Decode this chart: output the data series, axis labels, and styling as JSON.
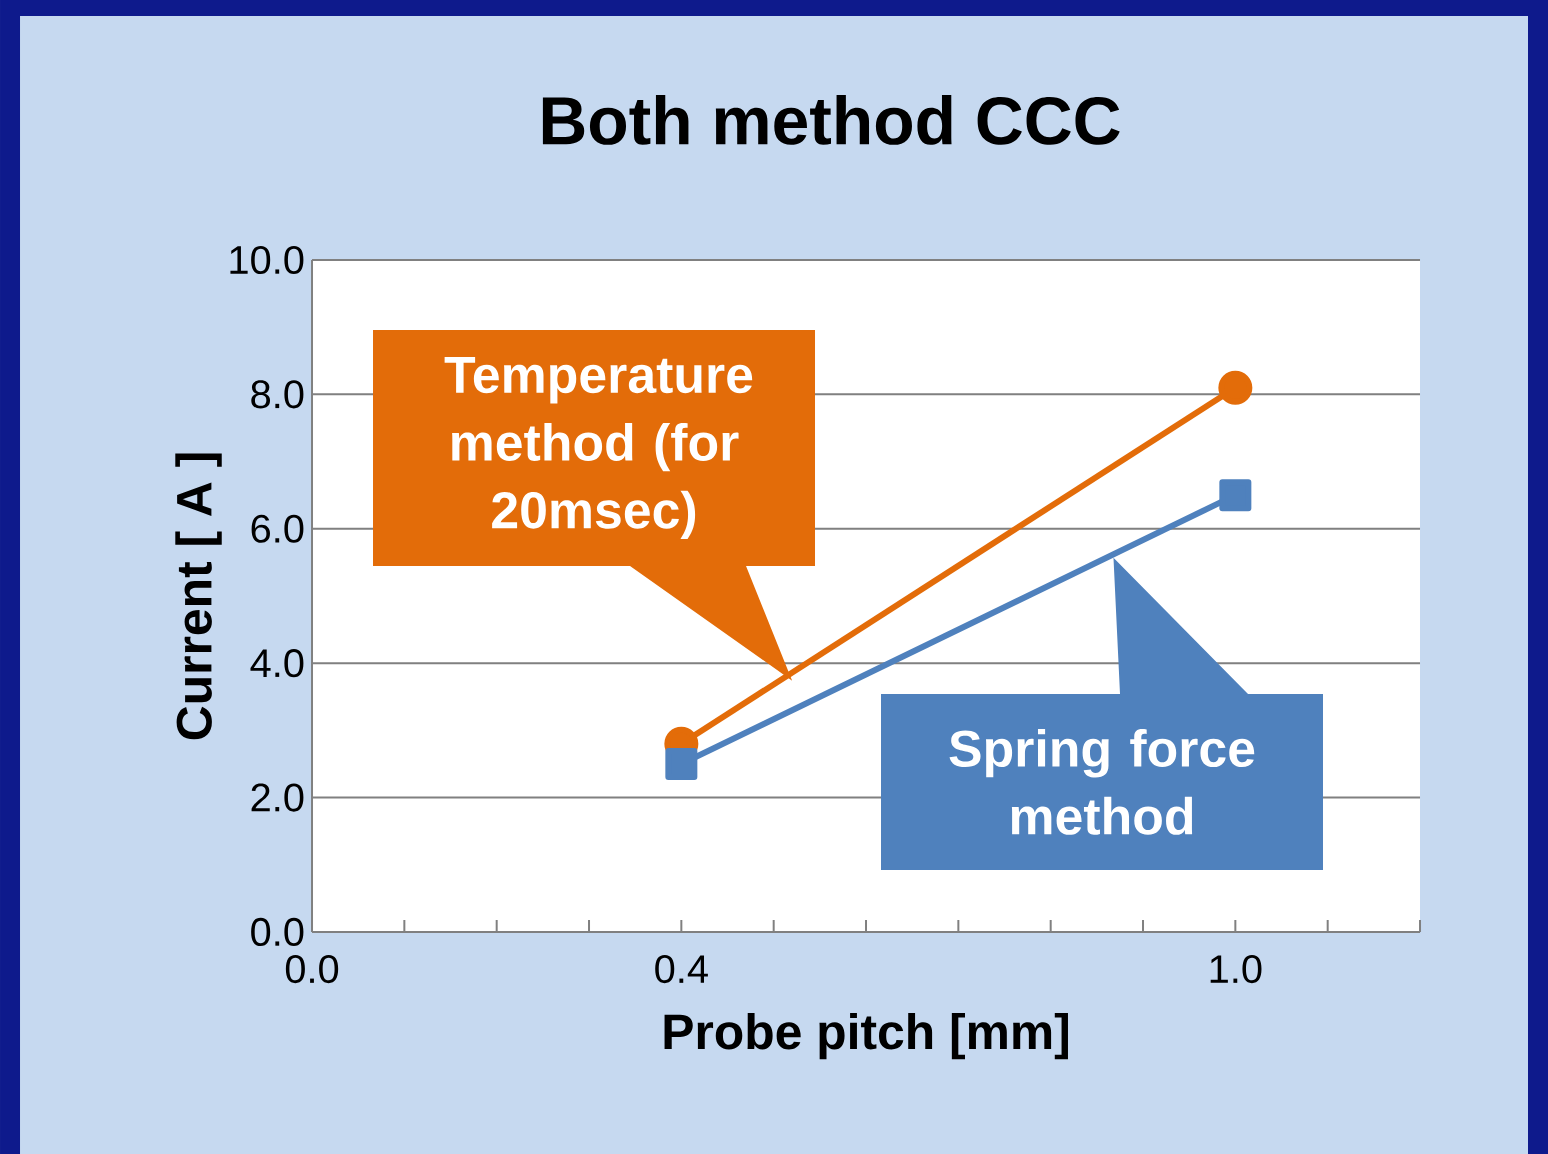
{
  "chart_data": {
    "type": "line",
    "title": "Both method CCC",
    "xlabel": "Probe pitch [mm]",
    "ylabel": "Current [ A ]",
    "xlim": [
      0,
      1.2
    ],
    "xticks": [
      {
        "value": 0,
        "label": "0.0"
      },
      {
        "value": 0.1,
        "label": null
      },
      {
        "value": 0.2,
        "label": null
      },
      {
        "value": 0.3,
        "label": null
      },
      {
        "value": 0.4,
        "label": "0.4"
      },
      {
        "value": 0.5,
        "label": null
      },
      {
        "value": 0.6,
        "label": null
      },
      {
        "value": 0.7,
        "label": null
      },
      {
        "value": 0.8,
        "label": null
      },
      {
        "value": 0.9,
        "label": null
      },
      {
        "value": 1.0,
        "label": "1.0"
      },
      {
        "value": 1.1,
        "label": null
      },
      {
        "value": 1.2,
        "label": null
      }
    ],
    "ylim": [
      0,
      10
    ],
    "yticks": [
      {
        "value": 0,
        "label": "0.0"
      },
      {
        "value": 2,
        "label": "2.0"
      },
      {
        "value": 4,
        "label": "4.0"
      },
      {
        "value": 6,
        "label": "6.0"
      },
      {
        "value": 8,
        "label": "8.0"
      },
      {
        "value": 10,
        "label": "10.0"
      }
    ],
    "grid": "y",
    "x": [
      0.4,
      1.0
    ],
    "series": [
      {
        "name": "Temperature method (for 20msec)",
        "color": "#e36c09",
        "marker": "circle",
        "values": [
          2.8,
          8.1
        ]
      },
      {
        "name": "Spring force method",
        "color": "#4f81bd",
        "marker": "square",
        "values": [
          2.5,
          6.5
        ]
      }
    ]
  }
}
